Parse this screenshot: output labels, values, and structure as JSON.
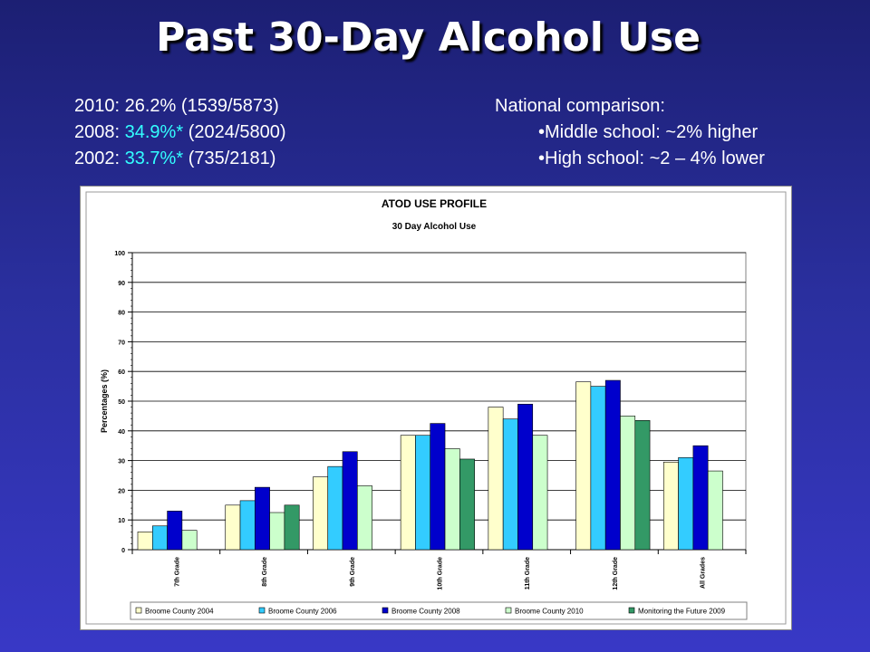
{
  "title": "Past 30-Day Alcohol Use",
  "stats": [
    {
      "year": "2010:",
      "value": "26.2%",
      "star": "",
      "detail": "(1539/5873)"
    },
    {
      "year": "2008:",
      "value": "34.9%",
      "star": "*",
      "detail": "(2024/5800)"
    },
    {
      "year": "2002:",
      "value": "33.7%",
      "star": "*",
      "detail": "(735/2181)"
    }
  ],
  "national": {
    "heading": "National comparison:",
    "items": [
      "•Middle school: ~2% higher",
      "•High school: ~2 – 4% lower"
    ]
  },
  "colors": {
    "highlight": "#33ffff",
    "series": [
      "#ffffcc",
      "#33ccff",
      "#0000cc",
      "#ccffcc",
      "#339966"
    ]
  },
  "chart_data": {
    "type": "bar",
    "title": "ATOD USE PROFILE",
    "subtitle": "30 Day Alcohol Use",
    "ylabel": "Percentages (%)",
    "xlabel": "",
    "ylim": [
      0,
      100
    ],
    "yticks": [
      0,
      10,
      20,
      30,
      40,
      50,
      60,
      70,
      80,
      90,
      100
    ],
    "grid": true,
    "legend_position": "bottom",
    "categories": [
      "7th Grade",
      "8th Grade",
      "9th Grade",
      "10th Grade",
      "11th Grade",
      "12th Grade",
      "All Grades"
    ],
    "series": [
      {
        "name": "Broome County 2004",
        "values": [
          6,
          15,
          24.5,
          38.5,
          48,
          56.5,
          29.5
        ]
      },
      {
        "name": "Broome County 2006",
        "values": [
          8,
          16.5,
          28,
          38.5,
          44,
          55,
          31
        ]
      },
      {
        "name": "Broome County 2008",
        "values": [
          13,
          21,
          33,
          42.5,
          49,
          57,
          35
        ]
      },
      {
        "name": "Broome County 2010",
        "values": [
          6.5,
          12.5,
          21.5,
          34,
          38.5,
          45,
          26.5
        ]
      },
      {
        "name": "Monitoring the Future 2009",
        "values": [
          null,
          15,
          null,
          30.5,
          null,
          43.5,
          null
        ]
      }
    ]
  }
}
